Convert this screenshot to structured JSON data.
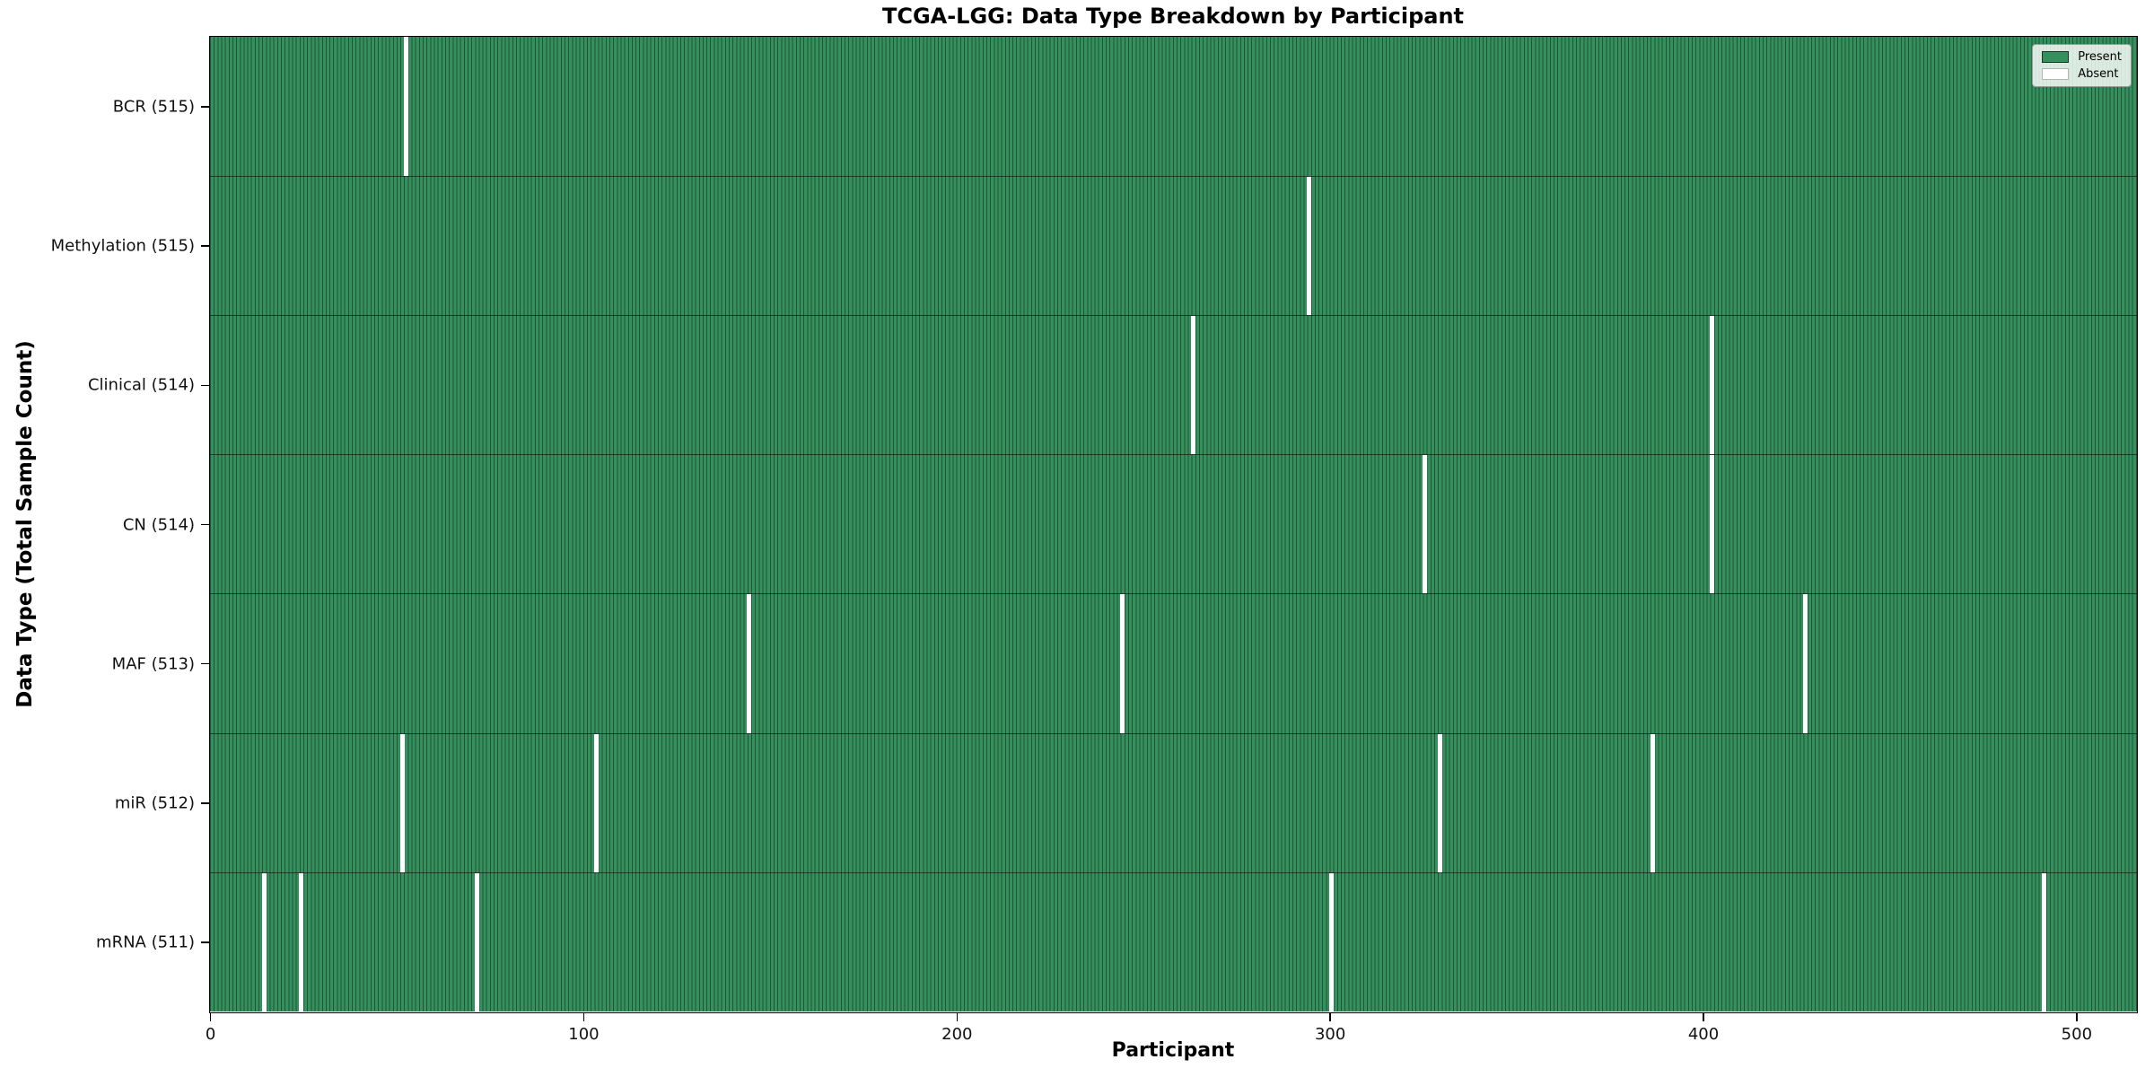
{
  "colors": {
    "present": "#35905e",
    "bar_edge": "rgba(0,0,0,0.42)",
    "absent": "#ffffff",
    "spine": "#000000"
  },
  "chart_data": {
    "type": "heatmap",
    "title": "TCGA-LGG: Data Type Breakdown by Participant",
    "xlabel": "Participant",
    "ylabel": "Data Type (Total Sample Count)",
    "x_ticks": [
      0,
      100,
      200,
      300,
      400,
      500
    ],
    "x_range": [
      0,
      516
    ],
    "n_participants": 516,
    "grid": false,
    "legend": [
      "Present",
      "Absent"
    ],
    "legend_position": "upper right",
    "rows": [
      {
        "label": "BCR",
        "total": 515,
        "absent_participants": [
          52
        ]
      },
      {
        "label": "Methylation",
        "total": 515,
        "absent_participants": [
          294
        ]
      },
      {
        "label": "Clinical",
        "total": 514,
        "absent_participants": [
          263,
          402
        ]
      },
      {
        "label": "CN",
        "total": 514,
        "absent_participants": [
          325,
          402
        ]
      },
      {
        "label": "MAF",
        "total": 513,
        "absent_participants": [
          144,
          244,
          427
        ]
      },
      {
        "label": "miR",
        "total": 512,
        "absent_participants": [
          51,
          103,
          329,
          386
        ]
      },
      {
        "label": "mRNA",
        "total": 511,
        "absent_participants": [
          14,
          24,
          71,
          300,
          491
        ]
      }
    ]
  }
}
